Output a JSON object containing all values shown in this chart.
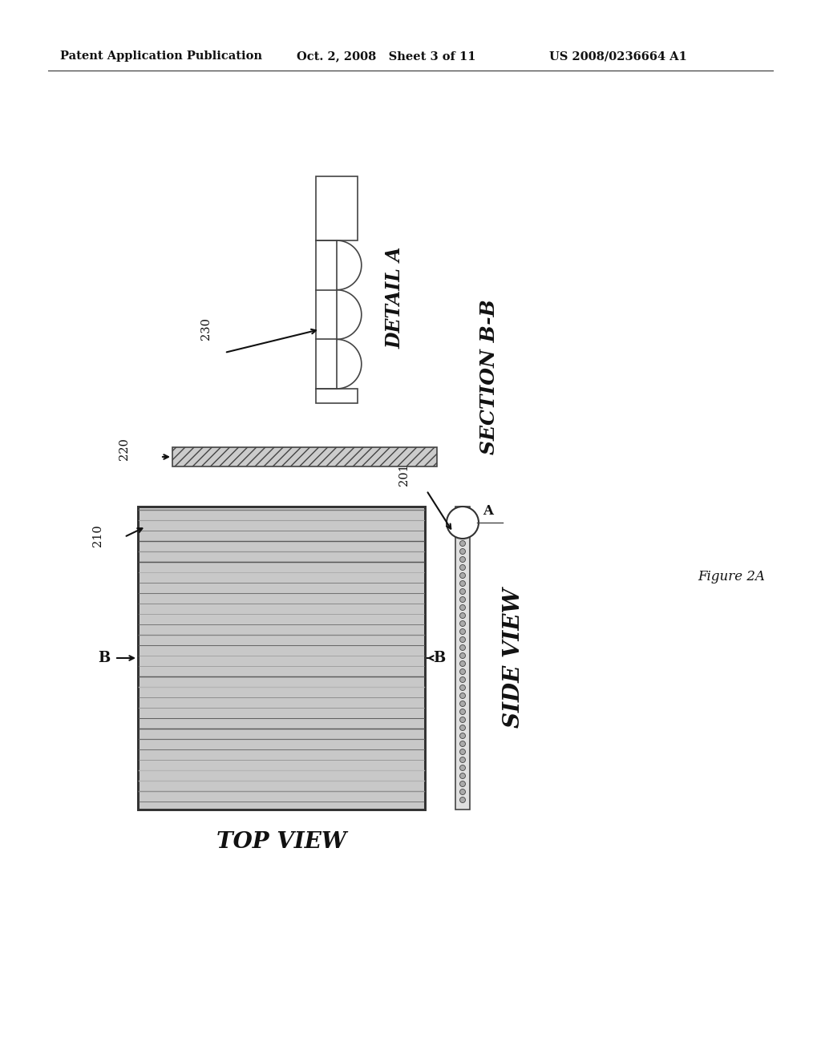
{
  "background_color": "#ffffff",
  "header_left": "Patent Application Publication",
  "header_mid": "Oct. 2, 2008   Sheet 3 of 11",
  "header_right": "US 2008/0236664 A1",
  "figure_label": "Figure 2A",
  "section_label": "SECTION B-B",
  "detail_label": "DETAIL A",
  "top_view_label": "TOP VIEW",
  "side_view_label": "SIDE VIEW",
  "label_210": "210",
  "label_220": "220",
  "label_230": "230",
  "label_201": "201",
  "label_A": "A",
  "label_B_left": "B",
  "label_B_right": "B"
}
